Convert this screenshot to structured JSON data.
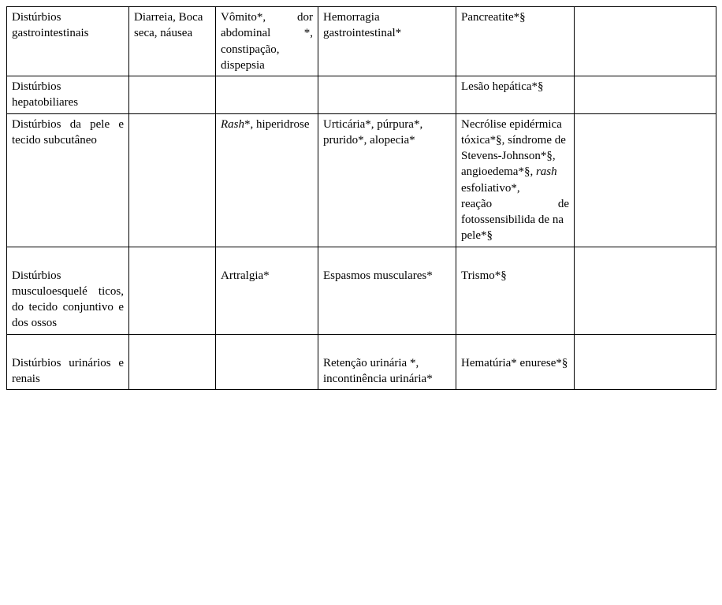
{
  "table": {
    "rows": [
      {
        "label_html": "Distúrbios gastrointestinais",
        "c2": "Diarreia, Boca seca, náusea",
        "c3_html": "Vômito*, dor abdominal *, constipação, dispepsia",
        "c4": "Hemorragia gastrointestinal*",
        "c5": "Pancreatite*§",
        "c6": ""
      },
      {
        "label_html": "Distúrbios hepatobiliares",
        "c2": "",
        "c3_html": "",
        "c4": "",
        "c5": "Lesão hepática*§",
        "c6": ""
      },
      {
        "label_html": "Distúrbios da pele e tecido subcutâneo",
        "c2": "",
        "c3_html": "<span class=\"it\">Rash</span>*, hiperidrose",
        "c4": "Urticária*, púrpura*, prurido*, alopecia*",
        "c5_html": "Necrólise epidérmica tóxica*§, síndrome de Stevens-Johnson*§, angioedema*§, <span class=\"it\">rash</span> esfoliativo*, <span style=\"display:inline-block;width:100%;text-align:justify;text-align-last:justify;\">reação de</span> fotossensibilida de na pele*§",
        "c6": ""
      },
      {
        "label_html": "Distúrbios musculoesquelé ticos, do tecido conjuntivo e dos ossos",
        "c2": "",
        "c3_html": "Artralgia*",
        "c4": "Espasmos musculares*",
        "c5": "Trismo*§",
        "c6": "",
        "pad": true
      },
      {
        "label_html": "Distúrbios urinários e renais",
        "c2": "",
        "c3_html": "",
        "c4": "Retenção urinária *, incontinência urinária*",
        "c5": "Hematúria* enurese*§",
        "c6": "",
        "pad": true
      }
    ]
  }
}
